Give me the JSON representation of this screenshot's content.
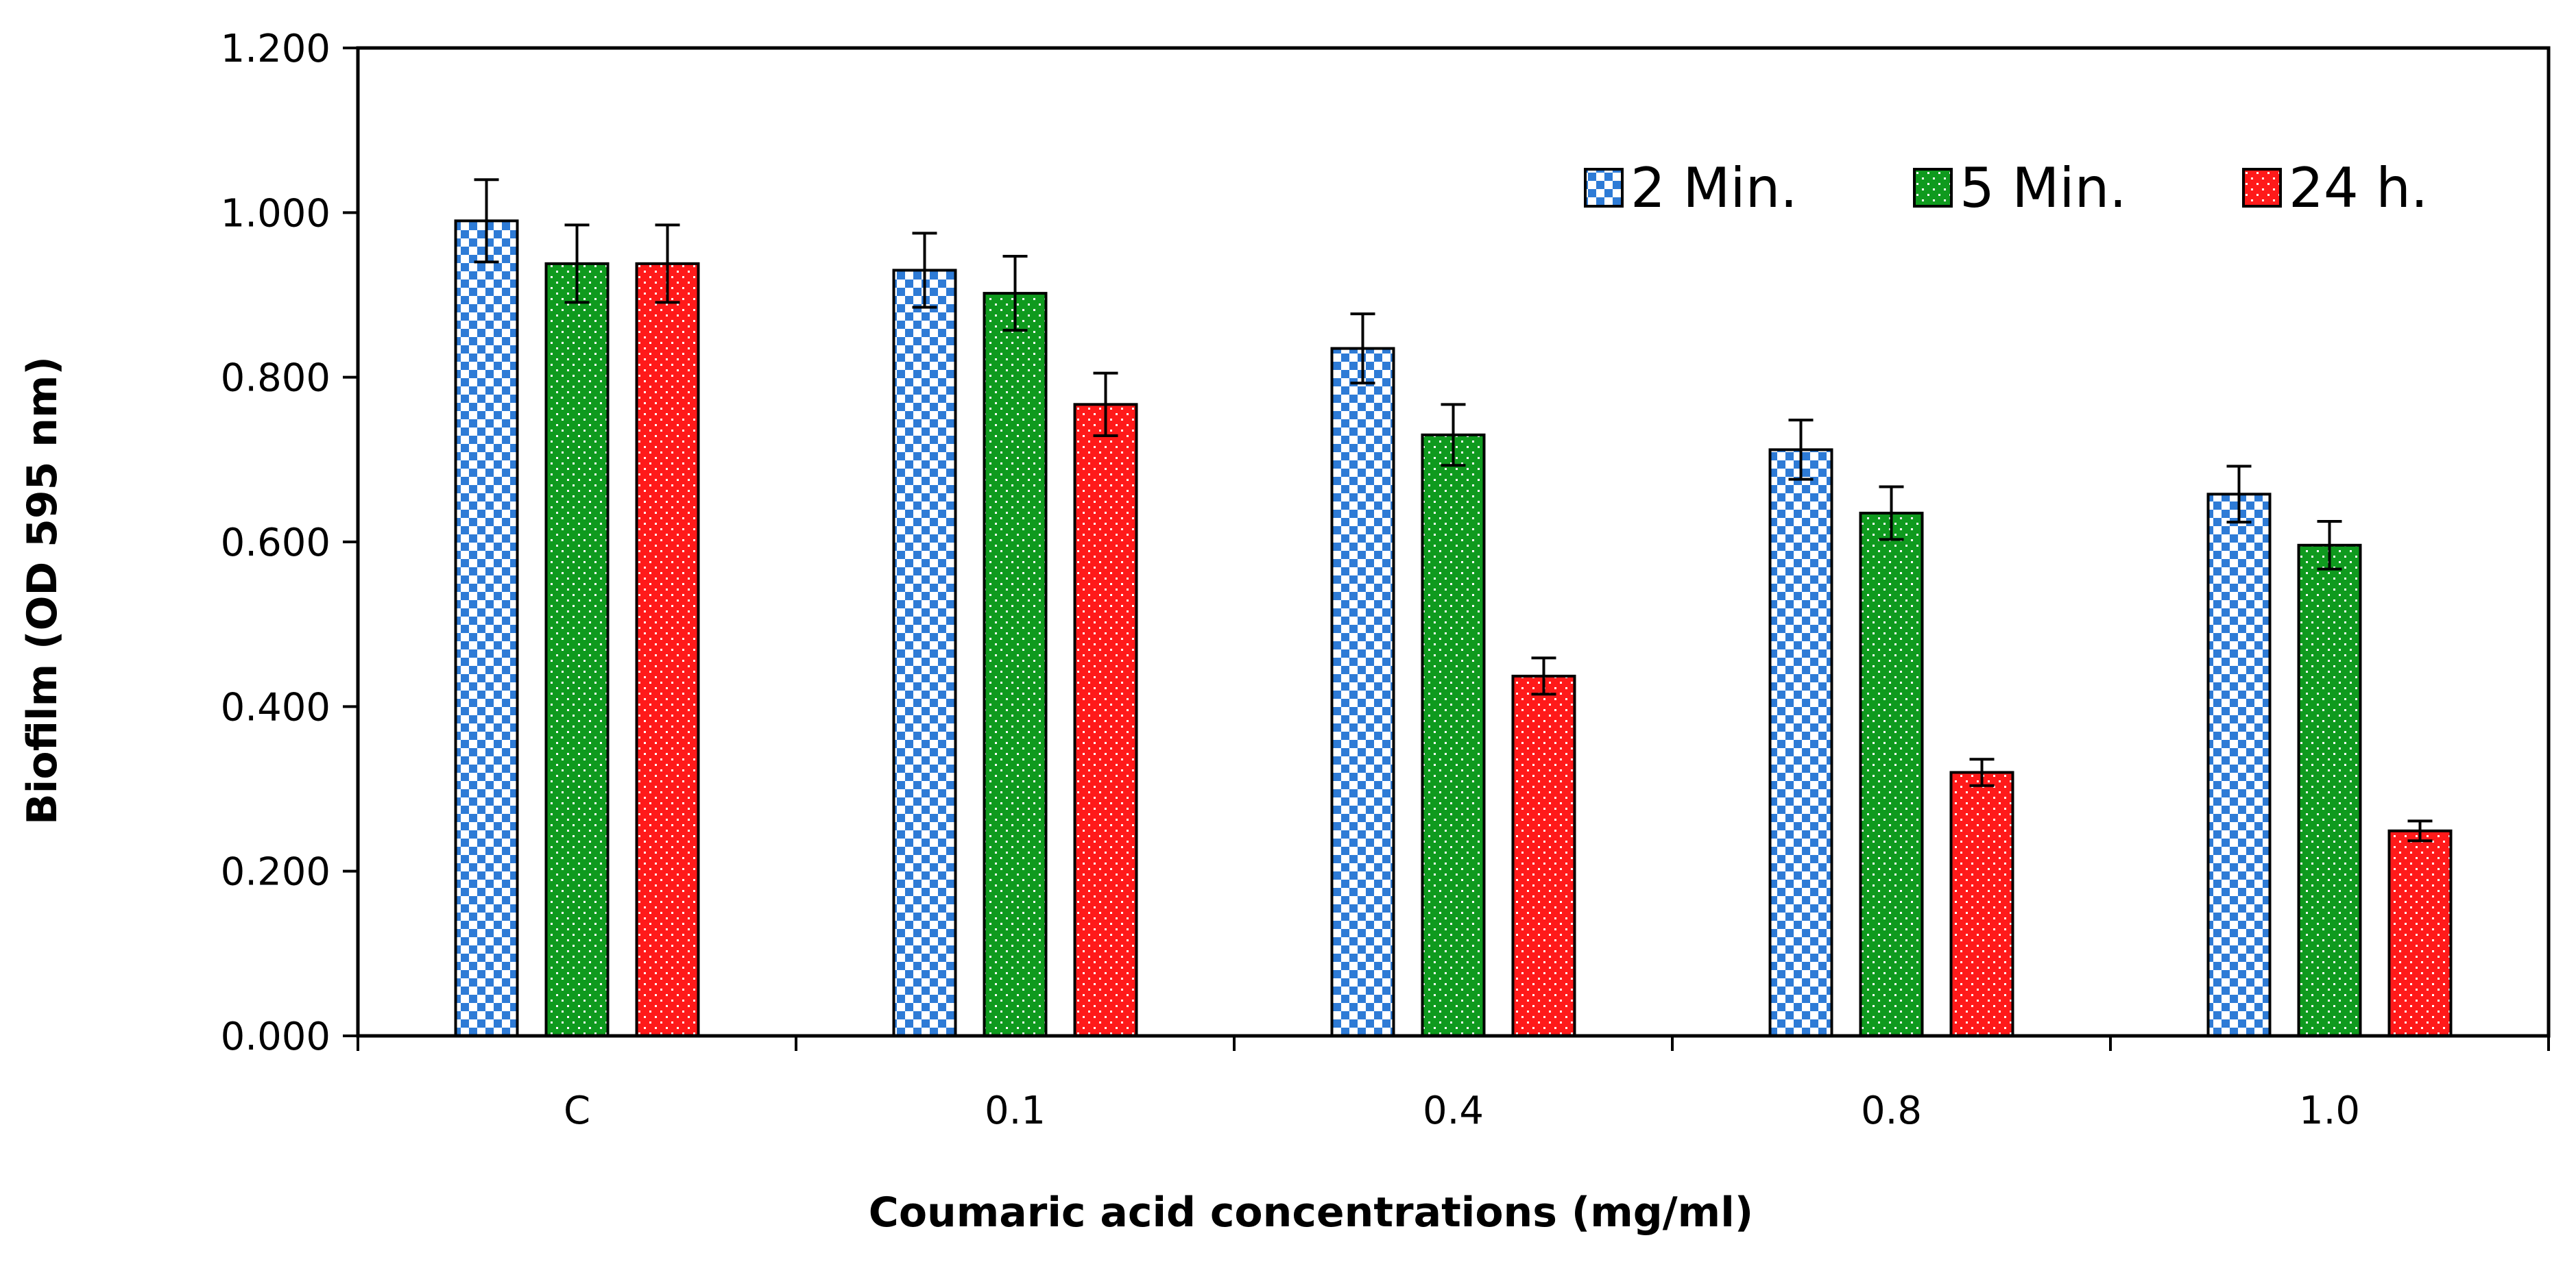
{
  "chart_data": {
    "type": "bar",
    "title": "",
    "xlabel": "Coumaric acid concentrations (mg/ml)",
    "ylabel": "Biofilm (OD 595 nm)",
    "categories": [
      "C",
      "0.1",
      "0.4",
      "0.8",
      "1.0"
    ],
    "ylim": [
      0,
      1.2
    ],
    "yticks": [
      0.0,
      0.2,
      0.4,
      0.6,
      0.8,
      1.0,
      1.2
    ],
    "ytick_labels": [
      "0.000",
      "0.200",
      "0.400",
      "0.600",
      "0.800",
      "1.000",
      "1.200"
    ],
    "grid": false,
    "legend_position": "top-right",
    "series": [
      {
        "name": "2 Min.",
        "pattern": "checker",
        "color": "#2e7bd6",
        "values": [
          0.99,
          0.93,
          0.835,
          0.712,
          0.658
        ],
        "errors": [
          0.05,
          0.045,
          0.042,
          0.036,
          0.034
        ]
      },
      {
        "name": "5 Min.",
        "pattern": "dots",
        "color": "#0f9a1e",
        "values": [
          0.938,
          0.902,
          0.73,
          0.635,
          0.596
        ],
        "errors": [
          0.047,
          0.045,
          0.037,
          0.032,
          0.029
        ]
      },
      {
        "name": "24 h.",
        "pattern": "dots",
        "color": "#ff1a1a",
        "values": [
          0.938,
          0.767,
          0.437,
          0.32,
          0.249
        ],
        "errors": [
          0.047,
          0.038,
          0.022,
          0.016,
          0.012
        ]
      }
    ]
  }
}
